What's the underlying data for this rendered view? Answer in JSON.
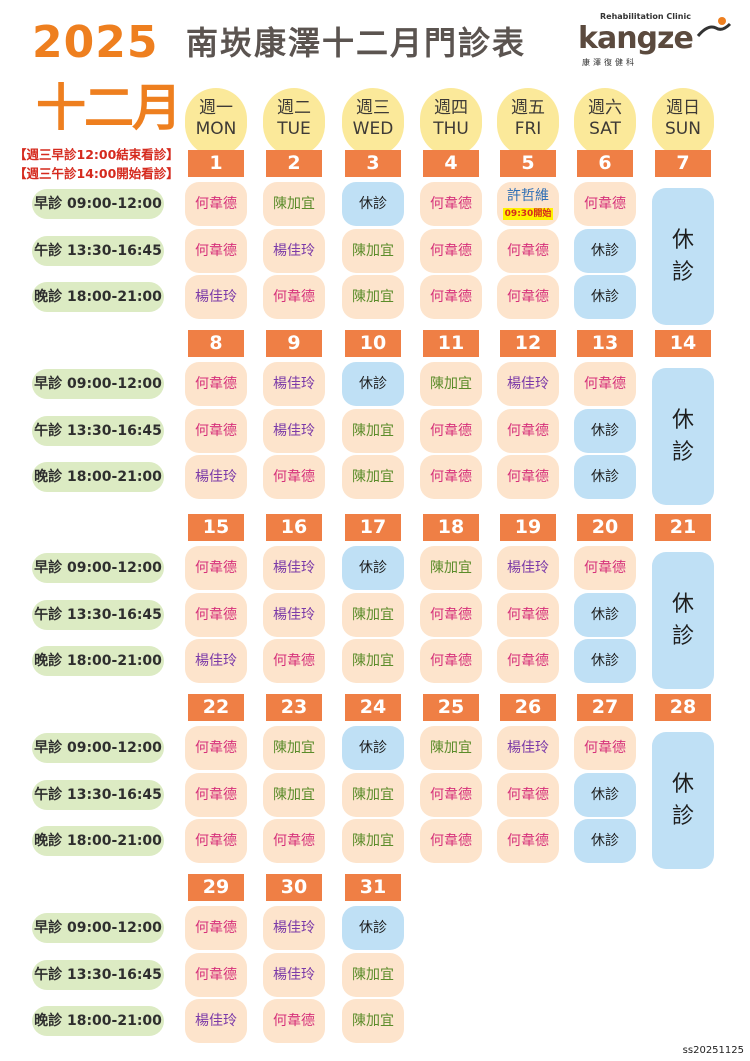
{
  "header": {
    "year": "2025",
    "title": "南崁康澤十二月門診表",
    "month": "十二月",
    "notes": [
      "【週三早診12:00結束看診】",
      "【週三午診14:00開始看診】"
    ],
    "logo": {
      "tagline": "Rehabilitation Clinic",
      "wordmark": "kangze",
      "chinese": "康澤復健科"
    }
  },
  "weekdays": [
    {
      "zh": "週一",
      "en": "MON"
    },
    {
      "zh": "週二",
      "en": "TUE"
    },
    {
      "zh": "週三",
      "en": "WED"
    },
    {
      "zh": "週四",
      "en": "THU"
    },
    {
      "zh": "週五",
      "en": "FRI"
    },
    {
      "zh": "週六",
      "en": "SAT"
    },
    {
      "zh": "週日",
      "en": "SUN"
    }
  ],
  "slot_labels": [
    "早診 09:00-12:00",
    "午診 13:30-16:45",
    "晚診 18:00-21:00"
  ],
  "closed_label": "休診",
  "doctor_colors": {
    "何韋德": "#d6317a",
    "陳加宜": "#5b8c2a",
    "楊佳玲": "#7b3aa8",
    "許哲維": "#2f6fb5",
    "休診": "#1e1e1e"
  },
  "weeks": [
    {
      "days": [
        {
          "date": "1",
          "slots": [
            "何韋德",
            "何韋德",
            "楊佳玲"
          ]
        },
        {
          "date": "2",
          "slots": [
            "陳加宜",
            "楊佳玲",
            "何韋德"
          ]
        },
        {
          "date": "3",
          "slots": [
            "休診",
            "陳加宜",
            "陳加宜"
          ]
        },
        {
          "date": "4",
          "slots": [
            "何韋德",
            "何韋德",
            "何韋德"
          ]
        },
        {
          "date": "5",
          "slots": [
            "許哲維",
            "何韋德",
            "何韋德"
          ],
          "morning_note": "09:30開始"
        },
        {
          "date": "6",
          "slots": [
            "何韋德",
            "休診",
            "休診"
          ]
        },
        {
          "date": "7",
          "closed": true
        }
      ]
    },
    {
      "days": [
        {
          "date": "8",
          "slots": [
            "何韋德",
            "何韋德",
            "楊佳玲"
          ]
        },
        {
          "date": "9",
          "slots": [
            "楊佳玲",
            "楊佳玲",
            "何韋德"
          ]
        },
        {
          "date": "10",
          "slots": [
            "休診",
            "陳加宜",
            "陳加宜"
          ]
        },
        {
          "date": "11",
          "slots": [
            "陳加宜",
            "何韋德",
            "何韋德"
          ]
        },
        {
          "date": "12",
          "slots": [
            "楊佳玲",
            "何韋德",
            "何韋德"
          ]
        },
        {
          "date": "13",
          "slots": [
            "何韋德",
            "休診",
            "休診"
          ]
        },
        {
          "date": "14",
          "closed": true
        }
      ]
    },
    {
      "days": [
        {
          "date": "15",
          "slots": [
            "何韋德",
            "何韋德",
            "楊佳玲"
          ]
        },
        {
          "date": "16",
          "slots": [
            "楊佳玲",
            "楊佳玲",
            "何韋德"
          ]
        },
        {
          "date": "17",
          "slots": [
            "休診",
            "陳加宜",
            "陳加宜"
          ]
        },
        {
          "date": "18",
          "slots": [
            "陳加宜",
            "何韋德",
            "何韋德"
          ]
        },
        {
          "date": "19",
          "slots": [
            "楊佳玲",
            "何韋德",
            "何韋德"
          ]
        },
        {
          "date": "20",
          "slots": [
            "何韋德",
            "休診",
            "休診"
          ]
        },
        {
          "date": "21",
          "closed": true
        }
      ]
    },
    {
      "days": [
        {
          "date": "22",
          "slots": [
            "何韋德",
            "何韋德",
            "何韋德"
          ]
        },
        {
          "date": "23",
          "slots": [
            "陳加宜",
            "陳加宜",
            "何韋德"
          ]
        },
        {
          "date": "24",
          "slots": [
            "休診",
            "陳加宜",
            "陳加宜"
          ]
        },
        {
          "date": "25",
          "slots": [
            "陳加宜",
            "何韋德",
            "何韋德"
          ]
        },
        {
          "date": "26",
          "slots": [
            "楊佳玲",
            "何韋德",
            "何韋德"
          ]
        },
        {
          "date": "27",
          "slots": [
            "何韋德",
            "休診",
            "休診"
          ]
        },
        {
          "date": "28",
          "closed": true
        }
      ]
    },
    {
      "days": [
        {
          "date": "29",
          "slots": [
            "何韋德",
            "何韋德",
            "楊佳玲"
          ]
        },
        {
          "date": "30",
          "slots": [
            "楊佳玲",
            "楊佳玲",
            "何韋德"
          ]
        },
        {
          "date": "31",
          "slots": [
            "休診",
            "陳加宜",
            "陳加宜"
          ]
        }
      ]
    }
  ],
  "footer_code": "ss20251125"
}
